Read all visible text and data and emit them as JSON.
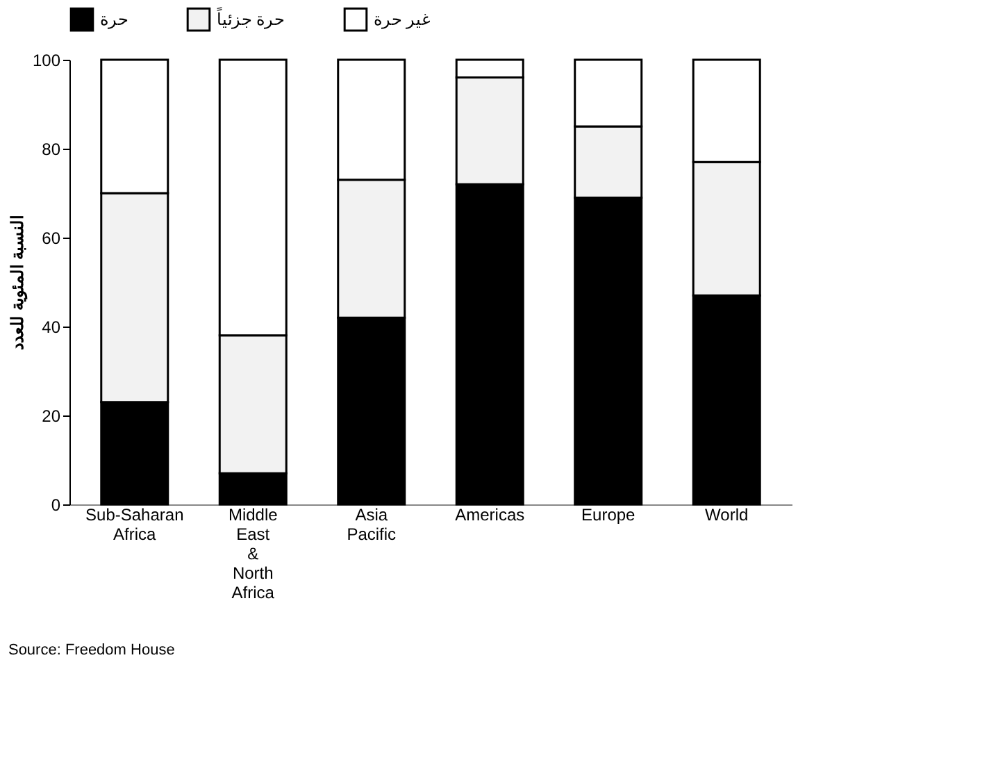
{
  "chart_data": {
    "type": "bar",
    "stacked": true,
    "ylabel": "النسبة المئوية للعدد",
    "categories": [
      "Sub-Saharan Africa",
      "Middle East & North Africa",
      "Asia Pacific",
      "Americas",
      "Europe",
      "World"
    ],
    "series": [
      {
        "name": "حرة",
        "color": "#000000",
        "values": [
          23,
          7,
          42,
          72,
          69,
          47
        ]
      },
      {
        "name": "حرة جزئياً",
        "color": "#f2f2f2",
        "values": [
          47,
          31,
          31,
          24,
          16,
          30
        ]
      },
      {
        "name": "غير حرة",
        "color": "#ffffff",
        "values": [
          30,
          62,
          27,
          4,
          15,
          23
        ]
      }
    ],
    "ylim": [
      0,
      100
    ],
    "yticks": [
      0,
      20,
      40,
      60,
      80,
      100
    ],
    "grid": false,
    "legend": "top",
    "annotations": [
      "Source: Freedom House"
    ]
  }
}
